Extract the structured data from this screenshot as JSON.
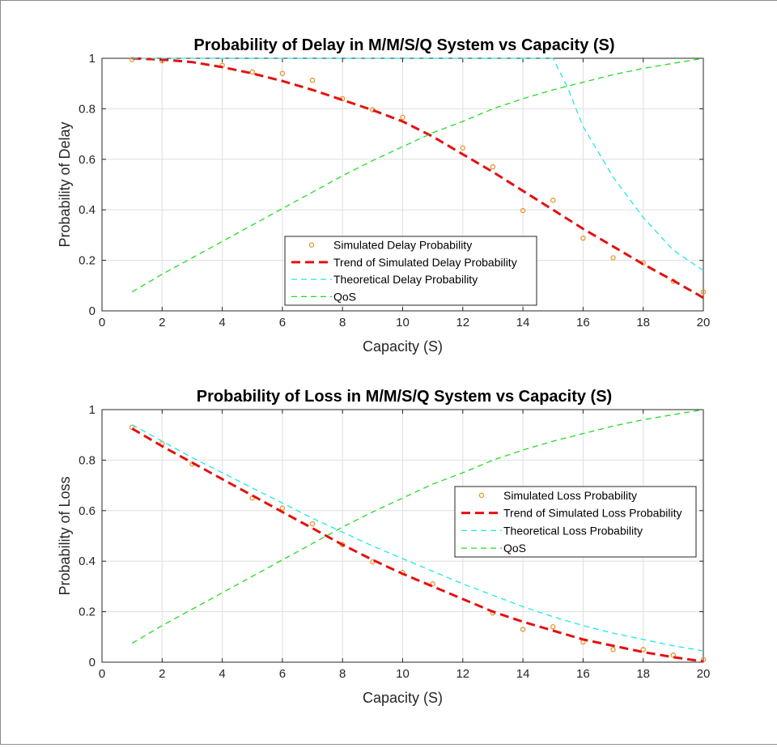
{
  "chart_data": [
    {
      "type": "line",
      "title": "Probability of Delay in M/M/S/Q System vs Capacity (S)",
      "xlabel": "Capacity (S)",
      "ylabel": "Probability of Delay",
      "xlim": [
        0,
        20
      ],
      "ylim": [
        0,
        1
      ],
      "xticks": [
        0,
        2,
        4,
        6,
        8,
        10,
        12,
        14,
        16,
        18,
        20
      ],
      "yticks": [
        0,
        0.2,
        0.4,
        0.6,
        0.8,
        1
      ],
      "xtick_labels": [
        "0",
        "2",
        "4",
        "6",
        "8",
        "10",
        "12",
        "14",
        "16",
        "18",
        "20"
      ],
      "ytick_labels": [
        "0",
        "0.2",
        "0.4",
        "0.6",
        "0.8",
        "1"
      ],
      "grid": true,
      "legend_position": "bottom-center",
      "series": [
        {
          "name": "Simulated Delay Probability",
          "style": "markers",
          "color": "#e8952b",
          "x": [
            1,
            2,
            4,
            5,
            6,
            7,
            8,
            9,
            10,
            12,
            13,
            14,
            15,
            16,
            17,
            18,
            19,
            20
          ],
          "y": [
            0.995,
            0.99,
            0.972,
            0.946,
            0.94,
            0.913,
            0.84,
            0.796,
            0.766,
            0.645,
            0.57,
            0.397,
            0.438,
            0.288,
            0.21,
            0.19,
            0.117,
            0.075
          ]
        },
        {
          "name": "Trend of Simulated Delay Probability",
          "style": "dashed-thick",
          "color": "#e51010",
          "x": [
            1,
            2,
            3,
            4,
            5,
            6,
            7,
            8,
            9,
            10,
            11,
            12,
            13,
            14,
            15,
            16,
            17,
            18,
            19,
            20
          ],
          "y": [
            1.0,
            0.995,
            0.985,
            0.965,
            0.94,
            0.91,
            0.875,
            0.835,
            0.795,
            0.75,
            0.69,
            0.62,
            0.55,
            0.475,
            0.4,
            0.325,
            0.255,
            0.185,
            0.12,
            0.052
          ]
        },
        {
          "name": "Theoretical Delay Probability",
          "style": "dashed",
          "color": "#22e6e6",
          "x": [
            1,
            2,
            3,
            4,
            5,
            6,
            7,
            8,
            9,
            10,
            11,
            12,
            13,
            14,
            15,
            15.5,
            16,
            17,
            18,
            19,
            20
          ],
          "y": [
            1,
            1,
            1,
            1,
            1,
            1,
            1,
            1,
            1,
            1,
            1,
            1,
            1,
            1,
            1,
            0.88,
            0.73,
            0.53,
            0.37,
            0.24,
            0.16
          ]
        },
        {
          "name": "QoS",
          "style": "dashed",
          "color": "#22dd22",
          "x": [
            1,
            2,
            3,
            4,
            5,
            6,
            7,
            8,
            9,
            10,
            11,
            12,
            13,
            14,
            15,
            16,
            17,
            18,
            19,
            20
          ],
          "y": [
            0.075,
            0.145,
            0.21,
            0.275,
            0.34,
            0.405,
            0.47,
            0.535,
            0.595,
            0.65,
            0.705,
            0.75,
            0.8,
            0.84,
            0.875,
            0.905,
            0.935,
            0.96,
            0.98,
            1.0
          ]
        }
      ]
    },
    {
      "type": "line",
      "title": "Probability of Loss in M/M/S/Q System vs Capacity (S)",
      "xlabel": "Capacity (S)",
      "ylabel": "Probability of Loss",
      "xlim": [
        0,
        20
      ],
      "ylim": [
        0,
        1
      ],
      "xticks": [
        0,
        2,
        4,
        6,
        8,
        10,
        12,
        14,
        16,
        18,
        20
      ],
      "yticks": [
        0,
        0.2,
        0.4,
        0.6,
        0.8,
        1
      ],
      "xtick_labels": [
        "0",
        "2",
        "4",
        "6",
        "8",
        "10",
        "12",
        "14",
        "16",
        "18",
        "20"
      ],
      "ytick_labels": [
        "0",
        "0.2",
        "0.4",
        "0.6",
        "0.8",
        "1"
      ],
      "grid": true,
      "legend_position": "right-center",
      "series": [
        {
          "name": "Simulated Loss Probability",
          "style": "markers",
          "color": "#e8952b",
          "x": [
            1,
            2,
            3,
            5,
            6,
            7,
            8,
            9,
            10,
            11,
            13,
            14,
            15,
            16,
            17,
            18,
            19,
            20
          ],
          "y": [
            0.93,
            0.865,
            0.785,
            0.65,
            0.61,
            0.548,
            0.465,
            0.397,
            0.355,
            0.31,
            0.195,
            0.13,
            0.14,
            0.08,
            0.05,
            0.05,
            0.028,
            0.01
          ]
        },
        {
          "name": "Trend of Simulated Loss Probability",
          "style": "dashed-thick",
          "color": "#e51010",
          "x": [
            1,
            2,
            3,
            4,
            5,
            6,
            7,
            8,
            9,
            10,
            11,
            12,
            13,
            14,
            15,
            16,
            17,
            18,
            19,
            20
          ],
          "y": [
            0.925,
            0.855,
            0.79,
            0.725,
            0.66,
            0.595,
            0.53,
            0.465,
            0.405,
            0.35,
            0.3,
            0.25,
            0.2,
            0.16,
            0.125,
            0.09,
            0.065,
            0.04,
            0.02,
            0.003
          ]
        },
        {
          "name": "Theoretical Loss Probability",
          "style": "dashed",
          "color": "#22e6e6",
          "x": [
            1,
            2,
            3,
            4,
            5,
            6,
            7,
            8,
            9,
            10,
            11,
            12,
            13,
            14,
            15,
            16,
            17,
            18,
            19,
            20
          ],
          "y": [
            0.94,
            0.875,
            0.81,
            0.75,
            0.69,
            0.63,
            0.57,
            0.515,
            0.46,
            0.41,
            0.36,
            0.31,
            0.265,
            0.22,
            0.18,
            0.145,
            0.115,
            0.09,
            0.065,
            0.045
          ]
        },
        {
          "name": "QoS",
          "style": "dashed",
          "color": "#22dd22",
          "x": [
            1,
            2,
            3,
            4,
            5,
            6,
            7,
            8,
            9,
            10,
            11,
            12,
            13,
            14,
            15,
            16,
            17,
            18,
            19,
            20
          ],
          "y": [
            0.075,
            0.145,
            0.21,
            0.275,
            0.34,
            0.405,
            0.47,
            0.535,
            0.595,
            0.65,
            0.705,
            0.75,
            0.8,
            0.84,
            0.875,
            0.905,
            0.935,
            0.96,
            0.98,
            1.0
          ]
        }
      ]
    }
  ]
}
